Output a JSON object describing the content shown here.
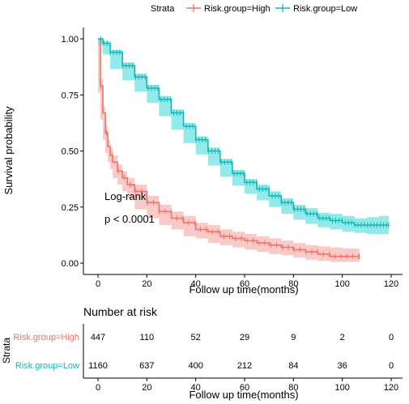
{
  "legend": {
    "title": "Strata",
    "entries": [
      "Risk.group=High",
      "Risk.group=Low"
    ]
  },
  "annotation": {
    "line1": "Log-rank",
    "line2": "p < 0.0001"
  },
  "colors": {
    "high": "#f07468",
    "high_band": "#f8c1bd",
    "low": "#1ab7b4",
    "low_band": "#7fe6e6"
  },
  "chart_data": {
    "type": "line",
    "xlabel": "Follow up time(months)",
    "ylabel": "Survival probability",
    "xlim": [
      0,
      120
    ],
    "ylim": [
      0,
      1
    ],
    "x_ticks": [
      0,
      20,
      40,
      60,
      80,
      100,
      120
    ],
    "y_ticks": [
      0.0,
      0.25,
      0.5,
      0.75,
      1.0
    ],
    "y_tick_labels": [
      "0.00",
      "0.25",
      "0.50",
      "0.75",
      "1.00"
    ],
    "grid": false,
    "legend_position": "top",
    "series": [
      {
        "name": "Risk.group=High",
        "x": [
          0,
          1,
          2,
          3,
          4,
          5,
          6,
          8,
          10,
          12,
          15,
          20,
          25,
          30,
          35,
          40,
          45,
          50,
          55,
          60,
          65,
          70,
          75,
          80,
          85,
          90,
          95,
          100,
          107
        ],
        "y": [
          1.0,
          0.79,
          0.67,
          0.58,
          0.52,
          0.48,
          0.45,
          0.41,
          0.38,
          0.35,
          0.32,
          0.27,
          0.23,
          0.2,
          0.18,
          0.15,
          0.14,
          0.12,
          0.11,
          0.1,
          0.09,
          0.08,
          0.07,
          0.06,
          0.05,
          0.04,
          0.03,
          0.03,
          0.03
        ],
        "lower": [
          1.0,
          0.76,
          0.64,
          0.55,
          0.49,
          0.45,
          0.42,
          0.38,
          0.35,
          0.32,
          0.29,
          0.24,
          0.2,
          0.17,
          0.15,
          0.12,
          0.11,
          0.09,
          0.08,
          0.07,
          0.06,
          0.05,
          0.04,
          0.035,
          0.025,
          0.015,
          0.01,
          0.005,
          0.005
        ],
        "upper": [
          1.0,
          0.82,
          0.7,
          0.61,
          0.55,
          0.51,
          0.48,
          0.44,
          0.41,
          0.38,
          0.35,
          0.3,
          0.26,
          0.23,
          0.21,
          0.18,
          0.17,
          0.15,
          0.14,
          0.13,
          0.12,
          0.11,
          0.1,
          0.09,
          0.08,
          0.075,
          0.07,
          0.065,
          0.065
        ]
      },
      {
        "name": "Risk.group=Low",
        "x": [
          0,
          2,
          5,
          10,
          15,
          20,
          25,
          30,
          35,
          40,
          45,
          50,
          55,
          60,
          65,
          70,
          75,
          80,
          85,
          90,
          95,
          100,
          105,
          110,
          115,
          119
        ],
        "y": [
          1.0,
          0.98,
          0.94,
          0.88,
          0.83,
          0.78,
          0.73,
          0.67,
          0.61,
          0.55,
          0.5,
          0.45,
          0.4,
          0.36,
          0.33,
          0.3,
          0.27,
          0.24,
          0.22,
          0.2,
          0.19,
          0.18,
          0.17,
          0.17,
          0.17,
          0.17
        ],
        "lower": [
          1.0,
          0.97,
          0.93,
          0.865,
          0.815,
          0.765,
          0.715,
          0.655,
          0.595,
          0.535,
          0.485,
          0.435,
          0.385,
          0.345,
          0.31,
          0.28,
          0.25,
          0.22,
          0.195,
          0.175,
          0.16,
          0.15,
          0.14,
          0.135,
          0.13,
          0.13
        ],
        "upper": [
          1.0,
          0.99,
          0.95,
          0.895,
          0.845,
          0.795,
          0.745,
          0.685,
          0.625,
          0.565,
          0.515,
          0.465,
          0.415,
          0.375,
          0.35,
          0.32,
          0.29,
          0.26,
          0.245,
          0.225,
          0.22,
          0.21,
          0.2,
          0.205,
          0.21,
          0.21
        ]
      }
    ]
  },
  "risk_table": {
    "title": "Number at risk",
    "ylabel": "Strata",
    "xlabel": "Follow up time(months)",
    "times": [
      0,
      20,
      40,
      60,
      80,
      100,
      120
    ],
    "rows": [
      {
        "label": "Risk.group=High",
        "counts": [
          "447",
          "110",
          "52",
          "29",
          "9",
          "2",
          "0"
        ]
      },
      {
        "label": "Risk.group=Low",
        "counts": [
          "1160",
          "637",
          "400",
          "212",
          "84",
          "36",
          "0"
        ]
      }
    ]
  }
}
